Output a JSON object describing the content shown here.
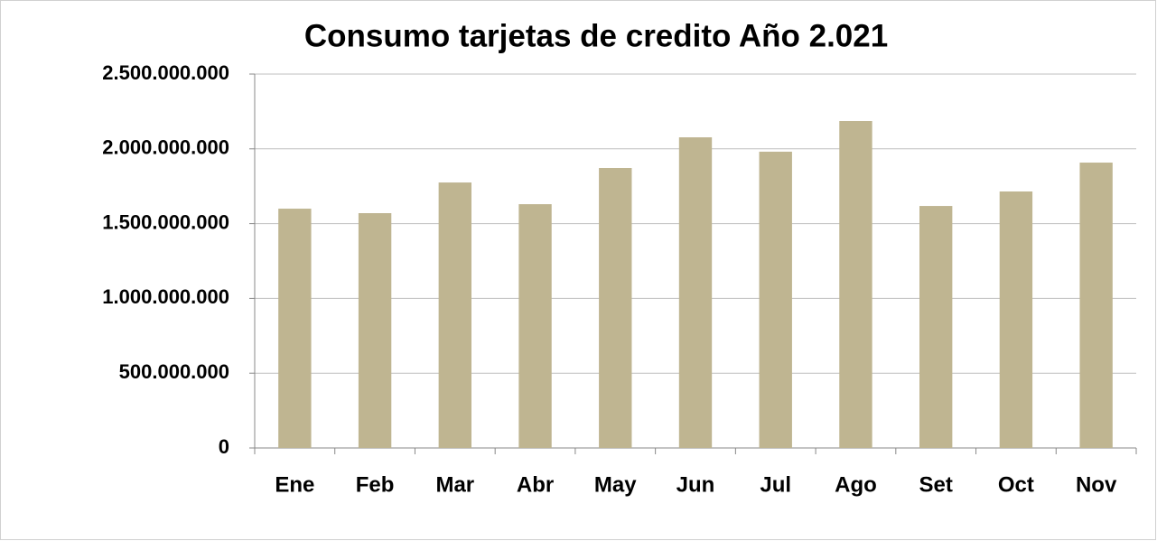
{
  "chart_data": {
    "type": "bar",
    "title": "Consumo tarjetas de credito Año 2.021",
    "categories": [
      "Ene",
      "Feb",
      "Mar",
      "Abr",
      "May",
      "Jun",
      "Jul",
      "Ago",
      "Set",
      "Oct",
      "Nov"
    ],
    "values": [
      1600000000,
      1570000000,
      1775000000,
      1630000000,
      1872000000,
      2077000000,
      1981000000,
      2186000000,
      1618000000,
      1715000000,
      1908000000
    ],
    "color": "#bfb591",
    "ylim": [
      0,
      2500000000
    ],
    "yticks": [
      0,
      {
        "value": 500000000,
        "label": "500.000.000"
      },
      {
        "value": 1000000000,
        "label": "1.000.000.000"
      },
      {
        "value": 1500000000,
        "label": "1.500.000.000"
      },
      {
        "value": 2000000000,
        "label": "2.000.000.000"
      },
      {
        "value": 2500000000,
        "label": "2.500.000.000"
      }
    ],
    "grid": true
  }
}
